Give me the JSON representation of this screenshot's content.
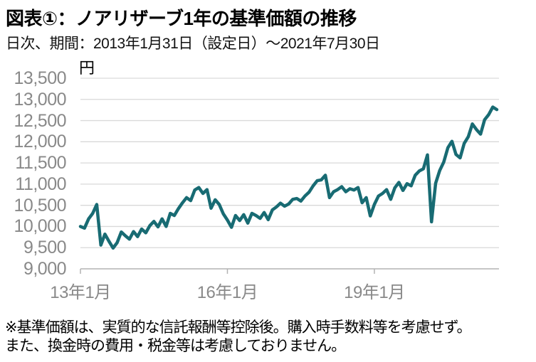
{
  "chart_data": {
    "type": "line",
    "title": "図表①：ノアリザーブ1年の基準価額の推移",
    "subtitle": "日次、期間：2013年1月31日（設定日）～2021年7月30日",
    "unit_label": "円",
    "ylim": [
      9000,
      13500
    ],
    "grid": true,
    "legend": "none",
    "x_start": "2013-01",
    "x_end": "2021-07",
    "x_step_months": 1,
    "y_ticks": [
      {
        "value": 13500,
        "label": "13,500"
      },
      {
        "value": 13000,
        "label": "13,000"
      },
      {
        "value": 12500,
        "label": "12,500"
      },
      {
        "value": 12000,
        "label": "12,000"
      },
      {
        "value": 11500,
        "label": "11,500"
      },
      {
        "value": 11000,
        "label": "11,000"
      },
      {
        "value": 10500,
        "label": "10,500"
      },
      {
        "value": 10000,
        "label": "10,000"
      },
      {
        "value": 9500,
        "label": "9,500"
      },
      {
        "value": 9000,
        "label": "9,000"
      }
    ],
    "x_ticks": [
      {
        "month_index": 0,
        "label": "13年1月"
      },
      {
        "month_index": 36,
        "label": "16年1月"
      },
      {
        "month_index": 72,
        "label": "19年1月"
      }
    ],
    "values": [
      10000,
      9960,
      10180,
      10310,
      10520,
      9560,
      9820,
      9650,
      9490,
      9620,
      9870,
      9780,
      9700,
      9880,
      9760,
      9940,
      9850,
      10020,
      10120,
      9990,
      10180,
      10000,
      10310,
      10260,
      10420,
      10560,
      10680,
      10610,
      10860,
      10920,
      10780,
      10870,
      10430,
      10630,
      10520,
      10300,
      10150,
      9980,
      10260,
      10140,
      10280,
      10080,
      10310,
      10260,
      10190,
      10330,
      10160,
      10390,
      10460,
      10550,
      10480,
      10530,
      10640,
      10660,
      10600,
      10720,
      10810,
      10960,
      11080,
      11100,
      11210,
      10680,
      10820,
      10870,
      10940,
      10820,
      10890,
      10860,
      10920,
      10560,
      10680,
      10250,
      10520,
      10720,
      10780,
      10870,
      10640,
      10910,
      11040,
      10850,
      11010,
      10960,
      11210,
      11310,
      11360,
      11690,
      10110,
      11020,
      11320,
      11520,
      11860,
      12010,
      11700,
      11620,
      11960,
      12120,
      12420,
      12290,
      12180,
      12520,
      12640,
      12820,
      12760
    ]
  },
  "footnote": {
    "line1": "※基準価額は、実質的な信託報酬等控除後。購入時手数料等を考慮せず。",
    "line2": "また、換金時の費用・税金等は考慮しておりません。"
  },
  "colors": {
    "line": "#186b73",
    "grid": "#d9d9d9",
    "axis": "#b3b3b3",
    "tick_label": "#898989",
    "text": "#000000",
    "background": "#ffffff"
  }
}
